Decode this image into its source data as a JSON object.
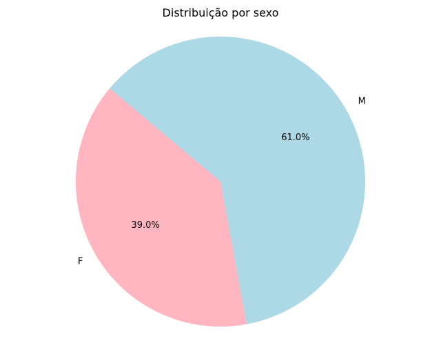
{
  "chart_data": {
    "type": "pie",
    "title": "Distribuição por sexo",
    "slices": [
      {
        "label": "F",
        "value": 39.0,
        "pct_label": "39.0%",
        "color": "#ffb6c1"
      },
      {
        "label": "M",
        "value": 61.0,
        "pct_label": "61.0%",
        "color": "#add8e6"
      }
    ],
    "start_angle_deg": 140,
    "direction": "counterclockwise",
    "legend": "none"
  }
}
